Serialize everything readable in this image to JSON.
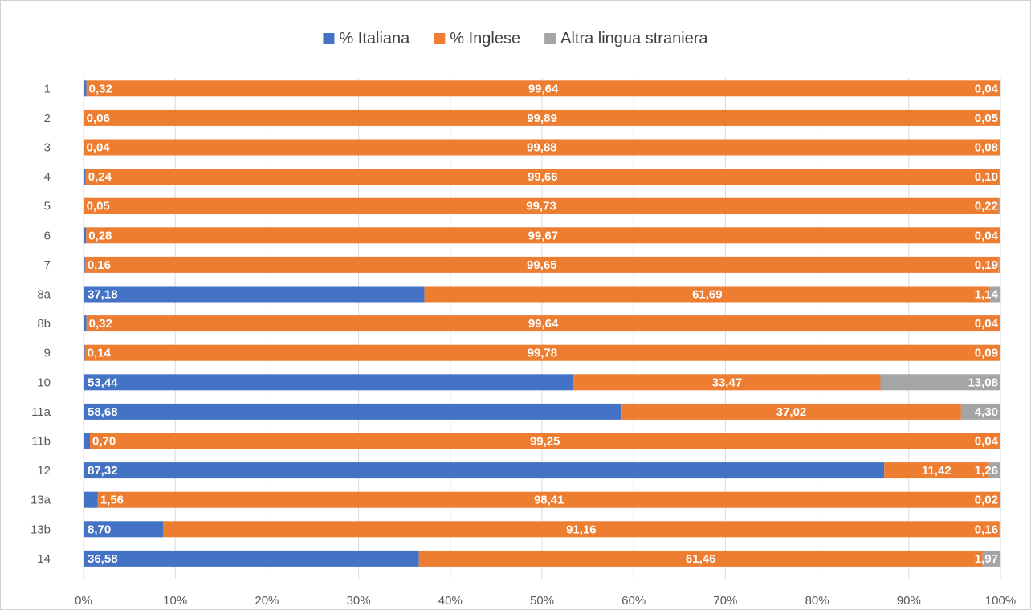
{
  "chart_data": {
    "type": "bar",
    "orientation": "horizontal",
    "stacked": "percent",
    "title": "",
    "xlabel": "",
    "ylabel": "",
    "xlim": [
      0,
      100
    ],
    "x_ticks": [
      "0%",
      "10%",
      "20%",
      "30%",
      "40%",
      "50%",
      "60%",
      "70%",
      "80%",
      "90%",
      "100%"
    ],
    "grid": "vertical",
    "legend_position": "top",
    "categories": [
      "1",
      "2",
      "3",
      "4",
      "5",
      "6",
      "7",
      "8a",
      "8b",
      "9",
      "10",
      "11a",
      "11b",
      "12",
      "13a",
      "13b",
      "14"
    ],
    "series": [
      {
        "name": "% Italiana",
        "color": "#4472c4",
        "values": [
          0.32,
          0.06,
          0.04,
          0.24,
          0.05,
          0.28,
          0.16,
          37.18,
          0.32,
          0.14,
          53.44,
          58.68,
          0.7,
          87.32,
          1.56,
          8.7,
          36.58
        ],
        "labels": [
          "0,32",
          "0,06",
          "0,04",
          "0,24",
          "0,05",
          "0,28",
          "0,16",
          "37,18",
          "0,32",
          "0,14",
          "53,44",
          "58,68",
          "0,70",
          "87,32",
          "1,56",
          "8,70",
          "36,58"
        ]
      },
      {
        "name": "% Inglese",
        "color": "#ed7d31",
        "values": [
          99.64,
          99.89,
          99.88,
          99.66,
          99.73,
          99.67,
          99.65,
          61.69,
          99.64,
          99.78,
          33.47,
          37.02,
          99.25,
          11.42,
          98.41,
          91.16,
          61.46
        ],
        "labels": [
          "99,64",
          "99,89",
          "99,88",
          "99,66",
          "99,73",
          "99,67",
          "99,65",
          "61,69",
          "99,64",
          "99,78",
          "33,47",
          "37,02",
          "99,25",
          "11,42",
          "98,41",
          "91,16",
          "61,46"
        ]
      },
      {
        "name": "Altra lingua straniera",
        "color": "#a5a5a5",
        "values": [
          0.04,
          0.05,
          0.08,
          0.1,
          0.22,
          0.04,
          0.19,
          1.14,
          0.04,
          0.09,
          13.08,
          4.3,
          0.04,
          1.26,
          0.02,
          0.16,
          1.97
        ],
        "labels": [
          "0,04",
          "0,05",
          "0,08",
          "0,10",
          "0,22",
          "0,04",
          "0,19",
          "1,14",
          "0,04",
          "0,09",
          "13,08",
          "4,30",
          "0,04",
          "1,26",
          "0,02",
          "0,16",
          "1,97"
        ]
      }
    ]
  }
}
